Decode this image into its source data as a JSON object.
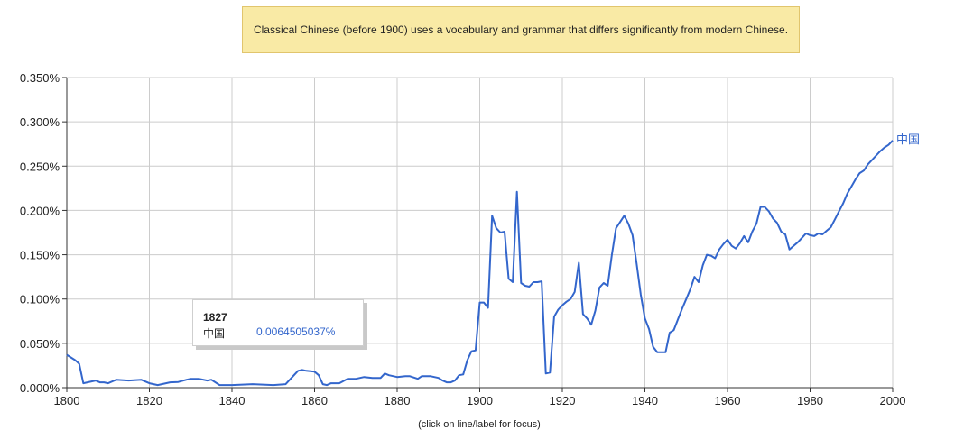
{
  "notice": {
    "text": "Classical Chinese (before 1900) uses a vocabulary and grammar that differs significantly from modern Chinese."
  },
  "tooltip": {
    "year": "1827",
    "term": "中国",
    "value": "0.0064505037%"
  },
  "hint": "(click on line/label for focus)",
  "colors": {
    "series": "#3366cc",
    "notice_bg": "#f9eaa5",
    "grid": "#cccccc"
  },
  "chart_data": {
    "type": "line",
    "xlim": [
      1800,
      2000
    ],
    "ylim": [
      0,
      0.35
    ],
    "grid": true,
    "x_ticks": [
      "1800",
      "1820",
      "1840",
      "1860",
      "1880",
      "1900",
      "1920",
      "1940",
      "1960",
      "1980",
      "2000"
    ],
    "y_ticks": [
      "0.000%",
      "0.050%",
      "0.100%",
      "0.150%",
      "0.200%",
      "0.250%",
      "0.300%",
      "0.350%"
    ],
    "series": [
      {
        "name": "中国",
        "x": [
          1800,
          1802,
          1803,
          1804,
          1805,
          1807,
          1808,
          1809,
          1810,
          1812,
          1815,
          1818,
          1820,
          1822,
          1825,
          1827,
          1829,
          1830,
          1832,
          1834,
          1835,
          1837,
          1840,
          1845,
          1850,
          1853,
          1856,
          1857,
          1858,
          1860,
          1861,
          1862,
          1863,
          1864,
          1866,
          1868,
          1870,
          1872,
          1874,
          1876,
          1877,
          1878,
          1880,
          1882,
          1883,
          1885,
          1886,
          1888,
          1890,
          1891,
          1892,
          1893,
          1894,
          1895,
          1896,
          1897,
          1898,
          1899,
          1900,
          1901,
          1902,
          1903,
          1904,
          1905,
          1906,
          1907,
          1908,
          1909,
          1910,
          1911,
          1912,
          1913,
          1914,
          1915,
          1916,
          1917,
          1918,
          1919,
          1920,
          1921,
          1922,
          1923,
          1924,
          1925,
          1926,
          1927,
          1928,
          1929,
          1930,
          1931,
          1932,
          1933,
          1934,
          1935,
          1936,
          1937,
          1938,
          1939,
          1940,
          1941,
          1942,
          1943,
          1944,
          1945,
          1946,
          1947,
          1948,
          1949,
          1950,
          1951,
          1952,
          1953,
          1954,
          1955,
          1956,
          1957,
          1958,
          1959,
          1960,
          1961,
          1962,
          1963,
          1964,
          1965,
          1966,
          1967,
          1968,
          1969,
          1970,
          1971,
          1972,
          1973,
          1974,
          1975,
          1976,
          1977,
          1978,
          1979,
          1980,
          1981,
          1982,
          1983,
          1984,
          1985,
          1986,
          1987,
          1988,
          1989,
          1990,
          1991,
          1992,
          1993,
          1994,
          1995,
          1996,
          1997,
          1998,
          1999,
          2000
        ],
        "values": [
          0.037,
          0.031,
          0.027,
          0.005,
          0.006,
          0.008,
          0.006,
          0.006,
          0.005,
          0.009,
          0.008,
          0.009,
          0.005,
          0.003,
          0.006,
          0.0064,
          0.009,
          0.01,
          0.01,
          0.008,
          0.009,
          0.003,
          0.003,
          0.004,
          0.003,
          0.004,
          0.019,
          0.02,
          0.019,
          0.018,
          0.014,
          0.004,
          0.003,
          0.005,
          0.005,
          0.01,
          0.01,
          0.012,
          0.011,
          0.011,
          0.016,
          0.014,
          0.012,
          0.013,
          0.013,
          0.01,
          0.013,
          0.013,
          0.011,
          0.008,
          0.006,
          0.006,
          0.008,
          0.014,
          0.015,
          0.031,
          0.041,
          0.042,
          0.096,
          0.096,
          0.09,
          0.194,
          0.18,
          0.175,
          0.176,
          0.123,
          0.119,
          0.221,
          0.118,
          0.115,
          0.114,
          0.119,
          0.119,
          0.12,
          0.016,
          0.017,
          0.08,
          0.088,
          0.093,
          0.097,
          0.1,
          0.108,
          0.141,
          0.083,
          0.078,
          0.071,
          0.087,
          0.113,
          0.118,
          0.115,
          0.15,
          0.18,
          0.187,
          0.194,
          0.185,
          0.172,
          0.14,
          0.105,
          0.078,
          0.066,
          0.046,
          0.04,
          0.04,
          0.04,
          0.062,
          0.065,
          0.077,
          0.089,
          0.1,
          0.111,
          0.125,
          0.119,
          0.138,
          0.15,
          0.149,
          0.146,
          0.156,
          0.162,
          0.167,
          0.16,
          0.157,
          0.163,
          0.171,
          0.164,
          0.176,
          0.185,
          0.204,
          0.204,
          0.199,
          0.191,
          0.186,
          0.176,
          0.173,
          0.156,
          0.16,
          0.164,
          0.169,
          0.174,
          0.172,
          0.171,
          0.174,
          0.173,
          0.177,
          0.181,
          0.19,
          0.199,
          0.208,
          0.219,
          0.227,
          0.235,
          0.242,
          0.245,
          0.252,
          0.257,
          0.262,
          0.267,
          0.271,
          0.274,
          0.279
        ]
      }
    ]
  }
}
